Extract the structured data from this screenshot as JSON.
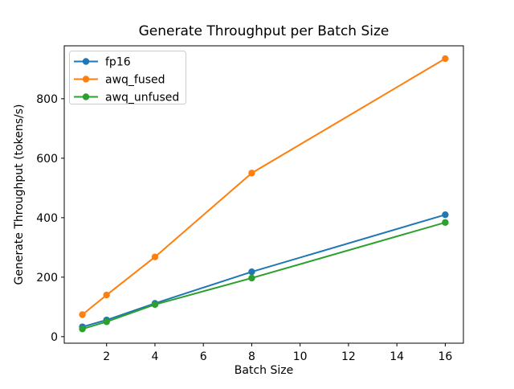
{
  "chart_data": {
    "type": "line",
    "title": "Generate Throughput per Batch Size",
    "xlabel": "Batch Size",
    "ylabel": "Generate Throughput (tokens/s)",
    "x": [
      1,
      2,
      4,
      8,
      16
    ],
    "series": [
      {
        "name": "fp16",
        "color": "#1f77b4",
        "marker": "circle",
        "values": [
          33,
          56,
          112,
          218,
          410
        ]
      },
      {
        "name": "awq_fused",
        "color": "#ff7f0e",
        "marker": "circle",
        "values": [
          74,
          140,
          268,
          550,
          935
        ]
      },
      {
        "name": "awq_unfused",
        "color": "#2ca02c",
        "marker": "circle",
        "values": [
          26,
          50,
          108,
          197,
          384
        ]
      }
    ],
    "xticks": [
      2,
      4,
      6,
      8,
      10,
      12,
      14,
      16
    ],
    "yticks": [
      0,
      200,
      400,
      600,
      800
    ],
    "xlim": [
      0.25,
      16.75
    ],
    "ylim": [
      -22,
      978
    ],
    "grid": false,
    "legend_position": "upper left",
    "background_color": "#ffffff",
    "spine_color": "#000000"
  }
}
